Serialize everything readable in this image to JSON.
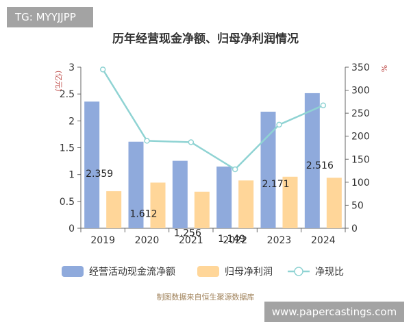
{
  "tag": "TG: MYYJJPP",
  "watermark": "www.papercastings.com",
  "source": "制图数据来自恒生聚源数据库",
  "colors": {
    "bar_cashflow": "#8faadc",
    "bar_profit": "#ffd699",
    "line": "#8fd3d3",
    "axis": "#666666",
    "unit": "#c0504d"
  },
  "chart_data": {
    "type": "bar",
    "title": "历年经营现金净额、归母净利润情况",
    "categories": [
      "2019",
      "2020",
      "2021",
      "2022",
      "2023",
      "2024"
    ],
    "ylabel_left": "(亿元)",
    "ylabel_right": "%",
    "ylim_left": [
      0,
      3
    ],
    "yticks_left": [
      "0",
      "0.5",
      "1",
      "1.5",
      "2",
      "2.5",
      "3"
    ],
    "ylim_right": [
      0,
      350
    ],
    "yticks_right": [
      "0",
      "50",
      "100",
      "150",
      "200",
      "250",
      "300",
      "350"
    ],
    "grid": false,
    "legend_position": "bottom",
    "series": [
      {
        "name": "经营活动现金流净额",
        "kind": "bar",
        "axis": "left",
        "values": [
          2.359,
          1.612,
          1.256,
          1.149,
          2.171,
          2.516
        ],
        "labels": [
          "2.359",
          "1.612",
          "1.256",
          "1.149",
          "2.171",
          "2.516"
        ]
      },
      {
        "name": "归母净利润",
        "kind": "bar",
        "axis": "left",
        "values": [
          0.69,
          0.85,
          0.68,
          0.89,
          0.96,
          0.94
        ]
      },
      {
        "name": "净现比",
        "kind": "line",
        "axis": "right",
        "values": [
          345,
          190,
          187,
          128,
          225,
          267
        ]
      }
    ]
  }
}
